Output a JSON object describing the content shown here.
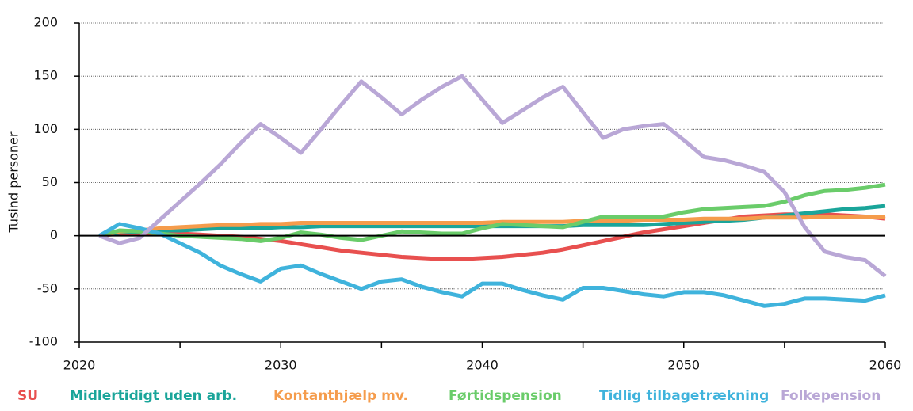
{
  "chart_data": {
    "type": "line",
    "y_label": "Tusind personer",
    "x": [
      2021,
      2022,
      2023,
      2024,
      2025,
      2026,
      2027,
      2028,
      2029,
      2030,
      2031,
      2032,
      2033,
      2034,
      2035,
      2036,
      2037,
      2038,
      2039,
      2040,
      2041,
      2042,
      2043,
      2044,
      2045,
      2046,
      2047,
      2048,
      2049,
      2050,
      2051,
      2052,
      2053,
      2054,
      2055,
      2056,
      2057,
      2058,
      2059,
      2060
    ],
    "series": [
      {
        "name": "SU",
        "color": "#e8504f",
        "values": [
          0,
          2,
          2,
          2,
          2,
          1,
          0,
          -1,
          -3,
          -5,
          -8,
          -11,
          -14,
          -16,
          -18,
          -20,
          -21,
          -22,
          -22,
          -21,
          -20,
          -18,
          -16,
          -13,
          -9,
          -5,
          -1,
          3,
          6,
          9,
          12,
          15,
          18,
          19,
          20,
          20,
          20,
          19,
          18,
          16
        ]
      },
      {
        "name": "Midlertidigt uden arb.",
        "color": "#1aa59a",
        "values": [
          0,
          3,
          4,
          5,
          5,
          6,
          7,
          7,
          7,
          8,
          8,
          9,
          9,
          9,
          9,
          9,
          9,
          9,
          9,
          9,
          9,
          9,
          9,
          9,
          10,
          10,
          10,
          10,
          11,
          12,
          13,
          14,
          15,
          17,
          19,
          21,
          23,
          25,
          26,
          28
        ]
      },
      {
        "name": "Kontanthjælp mv.",
        "color": "#f59c4c",
        "values": [
          0,
          4,
          5,
          7,
          8,
          9,
          10,
          10,
          11,
          11,
          12,
          12,
          12,
          12,
          12,
          12,
          12,
          12,
          12,
          12,
          13,
          13,
          13,
          13,
          14,
          14,
          14,
          15,
          15,
          15,
          16,
          16,
          16,
          17,
          17,
          17,
          18,
          18,
          18,
          18
        ]
      },
      {
        "name": "Førtidspension",
        "color": "#6acc6a",
        "values": [
          0,
          5,
          4,
          2,
          0,
          -1,
          -2,
          -3,
          -5,
          -2,
          3,
          1,
          -2,
          -4,
          0,
          4,
          3,
          2,
          2,
          7,
          11,
          10,
          9,
          8,
          13,
          18,
          18,
          18,
          18,
          22,
          25,
          26,
          27,
          28,
          32,
          38,
          42,
          43,
          45,
          48
        ]
      },
      {
        "name": "Tidlig tilbagetrækning",
        "color": "#3fb3dc",
        "values": [
          0,
          11,
          7,
          2,
          -7,
          -16,
          -28,
          -36,
          -43,
          -31,
          -28,
          -36,
          -43,
          -50,
          -43,
          -41,
          -48,
          -53,
          -57,
          -45,
          -45,
          -51,
          -56,
          -60,
          -49,
          -49,
          -52,
          -55,
          -57,
          -53,
          -53,
          -56,
          -61,
          -66,
          -64,
          -59,
          -59,
          -60,
          -61,
          -56
        ]
      },
      {
        "name": "Folkepension",
        "color": "#b9a7d6",
        "values": [
          0,
          -7,
          -2,
          15,
          32,
          49,
          67,
          87,
          105,
          92,
          78,
          100,
          123,
          145,
          130,
          114,
          128,
          140,
          150,
          128,
          106,
          118,
          130,
          140,
          116,
          92,
          100,
          103,
          105,
          90,
          74,
          71,
          66,
          60,
          41,
          8,
          -15,
          -20,
          -23,
          -38
        ]
      }
    ],
    "xlim": [
      2020,
      2060
    ],
    "xticks": [
      2020,
      2030,
      2040,
      2050,
      2060
    ],
    "xminorticks": [
      2025,
      2035,
      2045,
      2055
    ],
    "ylim": [
      -100,
      200
    ],
    "yticks": [
      -100,
      -50,
      0,
      50,
      100,
      150,
      200
    ],
    "grid": true
  }
}
